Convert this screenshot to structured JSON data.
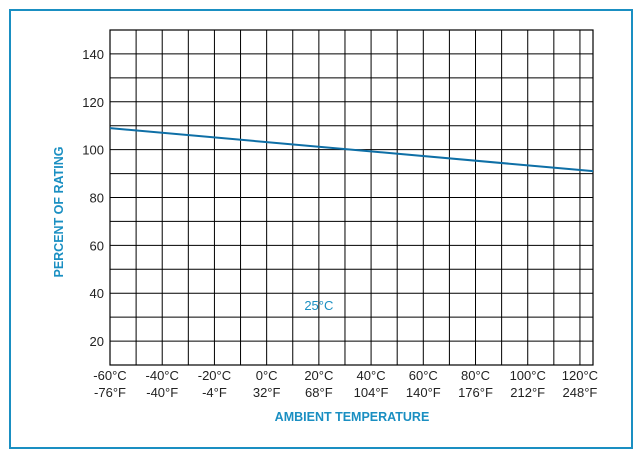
{
  "colors": {
    "frame": "#1a8fc2",
    "accent": "#1a8fc2",
    "line": "#0e6fa6",
    "grid": "#000000"
  },
  "chart_data": {
    "type": "line",
    "title": "",
    "xlabel": "AMBIENT TEMPERATURE",
    "ylabel": "PERCENT OF RATING",
    "x_ticks": [
      {
        "c": "-60°C",
        "f": "-76°F"
      },
      {
        "c": "-40°C",
        "f": "-40°F"
      },
      {
        "c": "-20°C",
        "f": "-4°F"
      },
      {
        "c": "0°C",
        "f": "32°F"
      },
      {
        "c": "20°C",
        "f": "68°F"
      },
      {
        "c": "40°C",
        "f": "104°F"
      },
      {
        "c": "60°C",
        "f": "140°F"
      },
      {
        "c": "80°C",
        "f": "176°F"
      },
      {
        "c": "100°C",
        "f": "212°F"
      },
      {
        "c": "120°C",
        "f": "248°F"
      }
    ],
    "y_ticks": [
      20,
      40,
      60,
      80,
      100,
      120,
      140
    ],
    "xlim": [
      -60,
      125
    ],
    "ylim": [
      10,
      150
    ],
    "grid": true,
    "series": [
      {
        "x": [
          -60,
          125
        ],
        "y": [
          109,
          91
        ]
      }
    ],
    "annotations": [
      {
        "text": "25°C",
        "x": 20,
        "y": 35
      }
    ]
  }
}
